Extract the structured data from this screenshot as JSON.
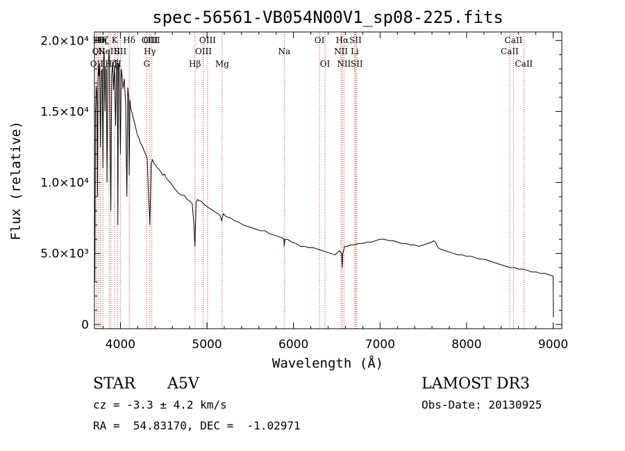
{
  "chart_data": {
    "type": "line",
    "title": "spec-56561-VB054N00V1_sp08-225.fits",
    "xlabel": "Wavelength (Å)",
    "ylabel": "Flux (relative)",
    "xlim": [
      3700,
      9100
    ],
    "ylim": [
      -300,
      20600
    ],
    "x_ticks": [
      4000,
      5000,
      6000,
      7000,
      8000,
      9000
    ],
    "y_ticks": [
      {
        "value": 0,
        "label": "0"
      },
      {
        "value": 5000,
        "label": "5.0×10³"
      },
      {
        "value": 10000,
        "label": "1.0×10⁴"
      },
      {
        "value": 15000,
        "label": "1.5×10⁴"
      },
      {
        "value": 20000,
        "label": "2.0×10⁴"
      }
    ],
    "grid": false,
    "series": [
      {
        "name": "flux",
        "x": [
          3700,
          3705,
          3712,
          3720,
          3728,
          3735,
          3740,
          3745,
          3752,
          3760,
          3770,
          3780,
          3790,
          3798,
          3805,
          3812,
          3822,
          3830,
          3838,
          3845,
          3855,
          3862,
          3870,
          3880,
          3889,
          3900,
          3910,
          3920,
          3933,
          3945,
          3955,
          3965,
          3970,
          3978,
          3990,
          4000,
          4010,
          4020,
          4030,
          4045,
          4060,
          4075,
          4085,
          4095,
          4102,
          4110,
          4120,
          4130,
          4145,
          4160,
          4175,
          4190,
          4200,
          4215,
          4230,
          4250,
          4270,
          4290,
          4310,
          4325,
          4335,
          4340,
          4345,
          4355,
          4370,
          4390,
          4410,
          4430,
          4450,
          4470,
          4490,
          4510,
          4530,
          4560,
          4590,
          4620,
          4650,
          4680,
          4710,
          4740,
          4770,
          4800,
          4830,
          4850,
          4857,
          4861,
          4866,
          4875,
          4890,
          4910,
          4930,
          4960,
          5000,
          5050,
          5100,
          5150,
          5170,
          5180,
          5190,
          5220,
          5270,
          5320,
          5370,
          5420,
          5470,
          5520,
          5570,
          5620,
          5670,
          5720,
          5770,
          5820,
          5870,
          5889,
          5893,
          5900,
          5930,
          5980,
          6030,
          6080,
          6130,
          6180,
          6230,
          6280,
          6330,
          6380,
          6430,
          6480,
          6530,
          6555,
          6563,
          6570,
          6590,
          6620,
          6660,
          6700,
          6750,
          6800,
          6850,
          6900,
          6950,
          7000,
          7050,
          7100,
          7150,
          7200,
          7250,
          7300,
          7350,
          7400,
          7450,
          7500,
          7550,
          7600,
          7620,
          7640,
          7670,
          7700,
          7750,
          7800,
          7850,
          7900,
          7950,
          8000,
          8050,
          8100,
          8150,
          8200,
          8250,
          8300,
          8350,
          8400,
          8450,
          8500,
          8550,
          8600,
          8650,
          8700,
          8750,
          8800,
          8850,
          8900,
          8950,
          9000,
          9003
        ],
        "y": [
          6500,
          3000,
          15000,
          16800,
          16200,
          9000,
          17000,
          18200,
          17500,
          18400,
          12500,
          17800,
          18000,
          11000,
          18500,
          19200,
          15000,
          18200,
          17800,
          10000,
          17900,
          18600,
          19400,
          14000,
          8000,
          17600,
          18500,
          16500,
          18200,
          14000,
          17800,
          18700,
          7000,
          18400,
          17900,
          12000,
          18000,
          17500,
          16600,
          17300,
          15500,
          9000,
          16700,
          16000,
          10500,
          15800,
          15200,
          15000,
          14600,
          14300,
          13900,
          13500,
          13300,
          13100,
          12800,
          12600,
          12300,
          12000,
          11700,
          9000,
          8000,
          7000,
          8200,
          11300,
          11600,
          11300,
          11200,
          11000,
          10900,
          10700,
          10500,
          10600,
          10300,
          10100,
          9900,
          9600,
          9400,
          9200,
          9100,
          9100,
          8800,
          8700,
          8500,
          7000,
          6000,
          5500,
          6500,
          8600,
          8800,
          8700,
          8700,
          8500,
          8300,
          8100,
          7900,
          7700,
          7300,
          7600,
          7800,
          7600,
          7500,
          7300,
          7200,
          7000,
          6900,
          6800,
          6700,
          6600,
          6600,
          6400,
          6300,
          6200,
          6100,
          6000,
          5500,
          6000,
          6000,
          5800,
          5700,
          5500,
          5500,
          5400,
          5400,
          5300,
          5200,
          5100,
          5000,
          4900,
          5200,
          5000,
          4000,
          5000,
          5500,
          5500,
          5600,
          5600,
          5700,
          5700,
          5800,
          5800,
          5900,
          6000,
          6000,
          5900,
          5900,
          5800,
          5700,
          5700,
          5600,
          5600,
          5500,
          5600,
          5700,
          5800,
          5900,
          5800,
          5400,
          5300,
          5200,
          5100,
          5000,
          4900,
          4900,
          4800,
          4800,
          4700,
          4600,
          4600,
          4500,
          4400,
          4300,
          4200,
          4100,
          4000,
          4000,
          3900,
          3900,
          3800,
          3700,
          3700,
          3600,
          3600,
          3500,
          3400,
          500
        ]
      }
    ],
    "line_markers": [
      {
        "wavelength": 3727,
        "labels": [
          "OII"
        ],
        "rows": [
          3
        ]
      },
      {
        "wavelength": 3750,
        "labels": [
          "Hθ",
          "OII"
        ],
        "rows": [
          1,
          2
        ]
      },
      {
        "wavelength": 3771,
        "labels": [
          "Hη"
        ],
        "rows": [
          1
        ]
      },
      {
        "wavelength": 3798,
        "labels": [
          "Hζ"
        ],
        "rows": [
          1
        ]
      },
      {
        "wavelength": 3869,
        "labels": [
          "NeIII"
        ],
        "rows": [
          2
        ]
      },
      {
        "wavelength": 3889,
        "labels": [
          "Hζ"
        ],
        "rows": [
          3
        ]
      },
      {
        "wavelength": 3934,
        "labels": [
          "K"
        ],
        "rows": [
          1
        ]
      },
      {
        "wavelength": 3969,
        "labels": [
          "H"
        ],
        "rows": [
          3
        ]
      },
      {
        "wavelength": 4000,
        "labels": [
          "SII"
        ],
        "rows": [
          2
        ]
      },
      {
        "wavelength": 4102,
        "labels": [
          "Hδ"
        ],
        "rows": [
          1
        ]
      },
      {
        "wavelength": 4304,
        "labels": [
          "G"
        ],
        "rows": [
          3
        ]
      },
      {
        "wavelength": 4340,
        "labels": [
          "OIII",
          "Hγ"
        ],
        "rows": [
          1,
          2
        ]
      },
      {
        "wavelength": 4363,
        "labels": [
          "OIII"
        ],
        "rows": [
          1
        ]
      },
      {
        "wavelength": 4861,
        "labels": [
          "Hβ"
        ],
        "rows": [
          3
        ]
      },
      {
        "wavelength": 4959,
        "labels": [
          "OIII"
        ],
        "rows": [
          2
        ]
      },
      {
        "wavelength": 5007,
        "labels": [
          "OIII"
        ],
        "rows": [
          1
        ]
      },
      {
        "wavelength": 5175,
        "labels": [
          "Mg"
        ],
        "rows": [
          3
        ]
      },
      {
        "wavelength": 5893,
        "labels": [
          "Na"
        ],
        "rows": [
          2
        ]
      },
      {
        "wavelength": 6300,
        "labels": [
          "OI"
        ],
        "rows": [
          1
        ]
      },
      {
        "wavelength": 6364,
        "labels": [
          "OI"
        ],
        "rows": [
          3
        ]
      },
      {
        "wavelength": 6548,
        "labels": [
          "NII"
        ],
        "rows": [
          2
        ]
      },
      {
        "wavelength": 6563,
        "labels": [
          "Hα"
        ],
        "rows": [
          1
        ]
      },
      {
        "wavelength": 6583,
        "labels": [
          "NII"
        ],
        "rows": [
          3
        ]
      },
      {
        "wavelength": 6708,
        "labels": [
          "Li"
        ],
        "rows": [
          2
        ]
      },
      {
        "wavelength": 6716,
        "labels": [
          "SII"
        ],
        "rows": [
          1
        ]
      },
      {
        "wavelength": 6731,
        "labels": [
          "SII"
        ],
        "rows": [
          3
        ]
      },
      {
        "wavelength": 8498,
        "labels": [
          "CaII"
        ],
        "rows": [
          2
        ]
      },
      {
        "wavelength": 8542,
        "labels": [
          "CaII"
        ],
        "rows": [
          1
        ]
      },
      {
        "wavelength": 8662,
        "labels": [
          "CaII"
        ],
        "rows": [
          3
        ]
      }
    ]
  },
  "info": {
    "class": "STAR",
    "subclass": "A5V",
    "survey": "LAMOST DR3",
    "cz_line": "cz = -3.3 ± 4.2 km/s",
    "obs_date": "Obs-Date: 20130925",
    "radec_line": "RA =  54.83170, DEC =  -1.02971"
  }
}
